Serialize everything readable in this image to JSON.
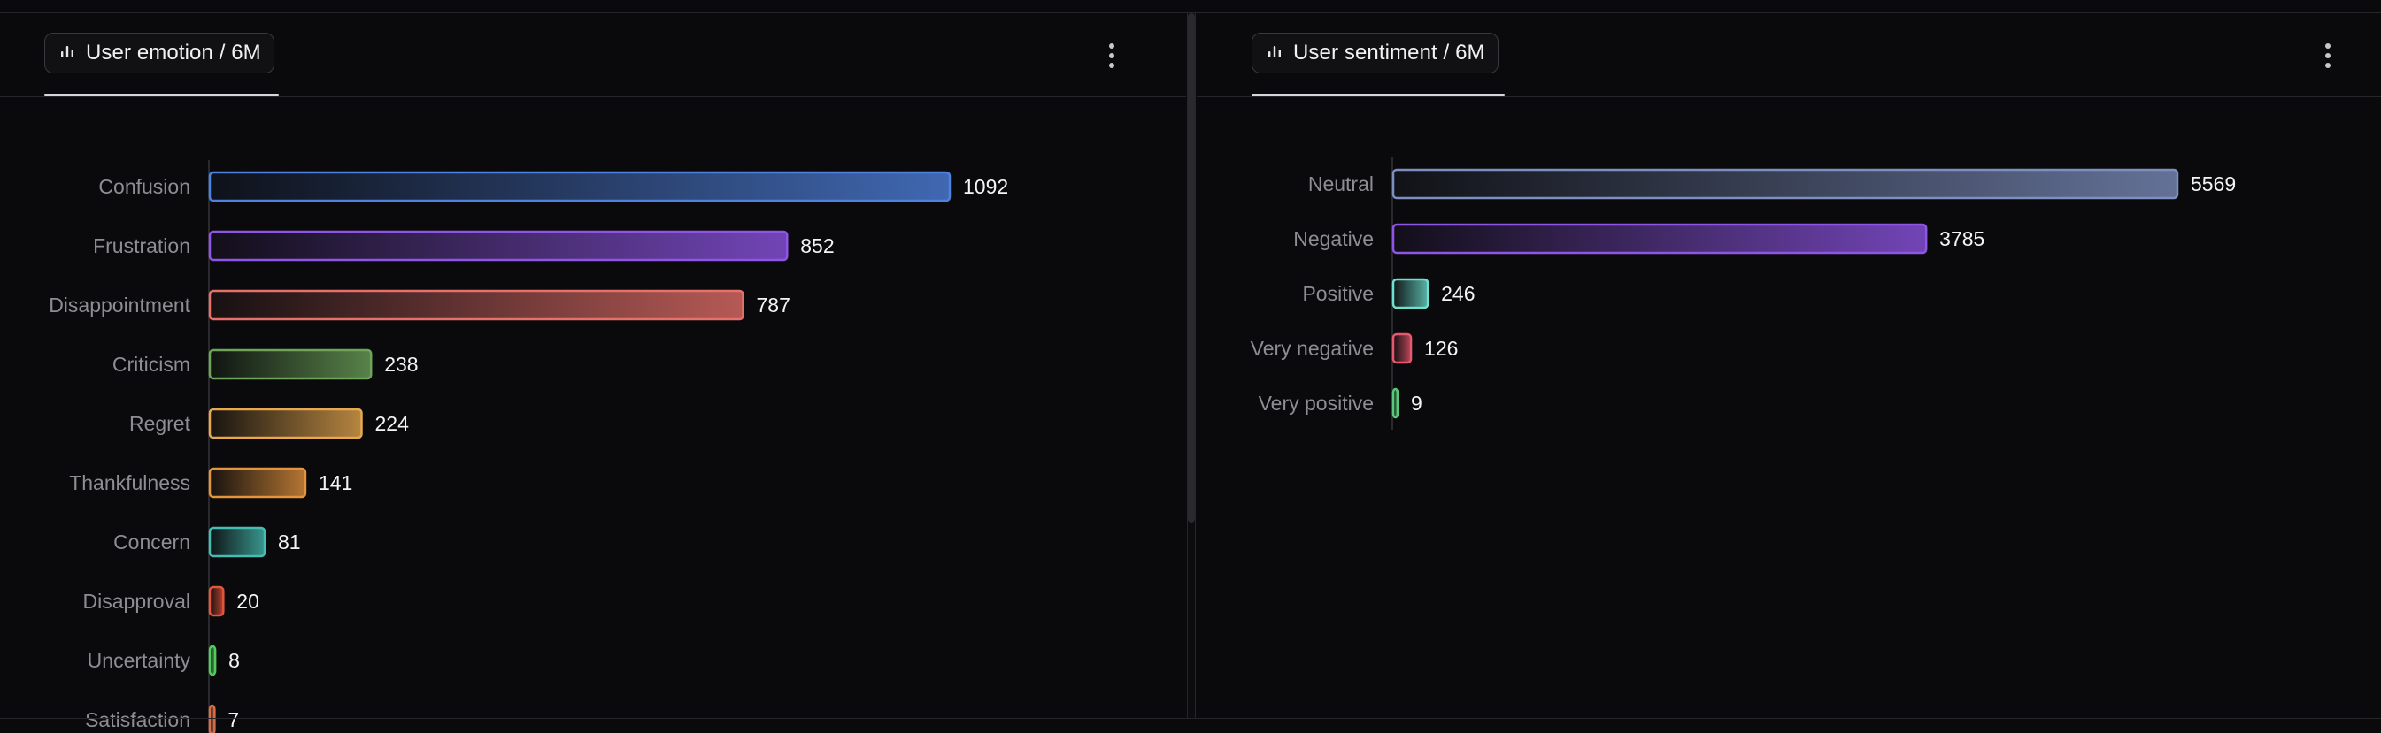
{
  "panels": [
    {
      "title": "User emotion / 6M",
      "icon": "bar-chart-icon",
      "menu_icon": "more-vertical-icon",
      "chart_data": {
        "type": "bar",
        "orientation": "horizontal",
        "title": "User emotion / 6M",
        "categories": [
          "Confusion",
          "Frustration",
          "Disappointment",
          "Criticism",
          "Regret",
          "Thankfulness",
          "Concern",
          "Disapproval",
          "Uncertainty",
          "Satisfaction"
        ],
        "values": [
          1092,
          852,
          787,
          238,
          224,
          141,
          81,
          20,
          8,
          7
        ],
        "colors": [
          "#4f82e0",
          "#8f55e6",
          "#e6706a",
          "#6ea55a",
          "#e7a84f",
          "#e5943e",
          "#46bdb2",
          "#e4553c",
          "#54c95e",
          "#d46f4a"
        ],
        "xlim": [
          0,
          1092
        ],
        "grid": false,
        "legend": "none"
      }
    },
    {
      "title": "User sentiment / 6M",
      "icon": "bar-chart-icon",
      "menu_icon": "more-vertical-icon",
      "chart_data": {
        "type": "bar",
        "orientation": "horizontal",
        "title": "User sentiment / 6M",
        "categories": [
          "Neutral",
          "Negative",
          "Positive",
          "Very negative",
          "Very positive"
        ],
        "values": [
          5569,
          3785,
          246,
          126,
          9
        ],
        "colors": [
          "#7d8fbf",
          "#8f55e6",
          "#6ee0d0",
          "#e6586f",
          "#58c97a"
        ],
        "xlim": [
          0,
          5569
        ],
        "grid": false,
        "legend": "none"
      }
    }
  ]
}
